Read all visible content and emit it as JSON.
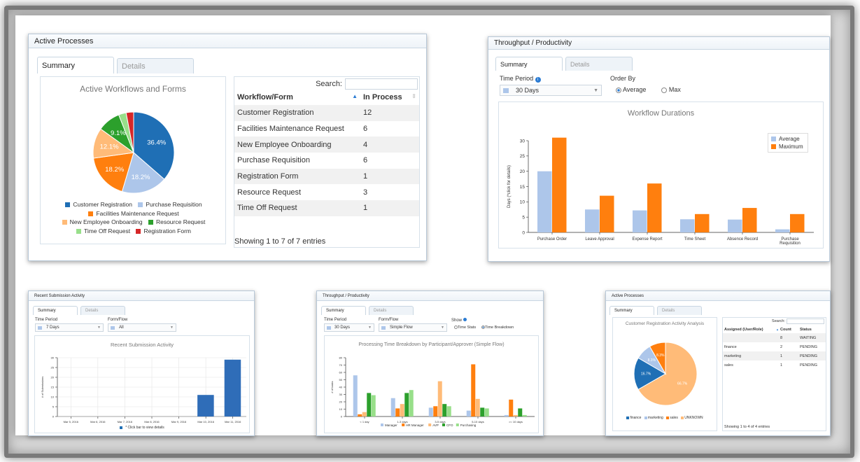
{
  "panel1": {
    "title": "Active Processes",
    "tabs": [
      "Summary",
      "Details"
    ],
    "chart_title": "Active Workflows and Forms",
    "slice_labels": [
      "36.4%",
      "18.2%",
      "18.2%",
      "12.1%",
      "9.1%"
    ],
    "legend": [
      {
        "label": "Customer Registration",
        "color": "#1f6fb5"
      },
      {
        "label": "Purchase Requisition",
        "color": "#adc6ea"
      },
      {
        "label": "Facilities Maintenance Request",
        "color": "#ff7f0e"
      },
      {
        "label": "New Employee Onboarding",
        "color": "#ffbb78"
      },
      {
        "label": "Resource Request",
        "color": "#2ca02c"
      },
      {
        "label": "Time Off Request",
        "color": "#98df8a"
      },
      {
        "label": "Registration Form",
        "color": "#d62728"
      }
    ],
    "search_label": "Search:",
    "table_headers": [
      "Workflow/Form",
      "In Process"
    ],
    "rows": [
      [
        "Customer Registration",
        "12"
      ],
      [
        "Facilities Maintenance Request",
        "6"
      ],
      [
        "New Employee Onboarding",
        "4"
      ],
      [
        "Purchase Requisition",
        "6"
      ],
      [
        "Registration Form",
        "1"
      ],
      [
        "Resource Request",
        "3"
      ],
      [
        "Time Off Request",
        "1"
      ]
    ],
    "footer": "Showing 1 to 7 of 7 entries"
  },
  "panel2": {
    "title": "Throughput / Productivity",
    "tabs": [
      "Summary",
      "Details"
    ],
    "time_period_label": "Time Period",
    "time_period_value": "30 Days",
    "order_by_label": "Order By",
    "order_options": [
      "Average",
      "Max"
    ],
    "chart_title": "Workflow Durations",
    "ylabel": "Days (*click for details)",
    "legend": [
      "Average",
      "Maximum"
    ]
  },
  "panel3": {
    "title": "Recent Submission Activity",
    "tabs": [
      "Summary",
      "Details"
    ],
    "time_period_label": "Time Period",
    "time_period_value": "7 Days",
    "form_flow_label": "Form/Flow",
    "form_flow_value": "All",
    "chart_title": "Recent Submission Activity",
    "ylabel": "# of Submissions",
    "legend": "* Click bar to view details"
  },
  "panel4": {
    "title": "Throughput / Productivity",
    "tabs": [
      "Summary",
      "Details"
    ],
    "time_period_label": "Time Period",
    "time_period_value": "30 Days",
    "form_flow_label": "Form/Flow",
    "form_flow_value": "Simple Flow",
    "show_label": "Show",
    "show_options": [
      "Time Stats",
      "Time Breakdown"
    ],
    "chart_title": "Processing Time Breakdown by Participant/Approver (Simple Flow)",
    "ylabel": "# of tasks"
  },
  "panel5": {
    "title": "Active Processes",
    "tabs": [
      "Summary",
      "Details"
    ],
    "chart_title": "Customer Registration Activity Analysis",
    "slice_labels": [
      "66.7%",
      "16.7%",
      "8.3%",
      "8.3%"
    ],
    "legend": [
      {
        "label": "finance",
        "color": "#1f6fb5"
      },
      {
        "label": "marketing",
        "color": "#adc6ea"
      },
      {
        "label": "sales",
        "color": "#ff7f0e"
      },
      {
        "label": "UNKNOWN",
        "color": "#ffbb78"
      }
    ],
    "search_label": "Search:",
    "table_headers": [
      "Assigned (User/Role)",
      "Count",
      "Status"
    ],
    "rows": [
      [
        "",
        "8",
        "WAITING"
      ],
      [
        "finance",
        "2",
        "PENDING"
      ],
      [
        "marketing",
        "1",
        "PENDING"
      ],
      [
        "sales",
        "1",
        "PENDING"
      ]
    ],
    "footer": "Showing 1 to 4 of 4 entries"
  },
  "chart_data": [
    {
      "type": "pie",
      "title": "Active Workflows and Forms",
      "categories": [
        "Customer Registration",
        "Purchase Requisition",
        "Facilities Maintenance Request",
        "New Employee Onboarding",
        "Resource Request",
        "Time Off Request",
        "Registration Form"
      ],
      "values": [
        36.4,
        18.2,
        18.2,
        12.1,
        9.1,
        3.0,
        3.0
      ]
    },
    {
      "type": "bar",
      "title": "Workflow Durations",
      "ylabel": "Days (*click for details)",
      "categories": [
        "Purchase Order",
        "Leave Approval",
        "Expense Report",
        "Time Sheet",
        "Absence Record",
        "Purchase Requisition"
      ],
      "series": [
        {
          "name": "Average",
          "values": [
            20,
            7.5,
            7.2,
            4.3,
            4.2,
            1.0
          ]
        },
        {
          "name": "Maximum",
          "values": [
            31,
            12,
            16,
            6,
            8,
            6
          ]
        }
      ],
      "ylim": [
        0,
        30
      ],
      "yticks": [
        0,
        5,
        10,
        15,
        20,
        25,
        30
      ],
      "legend_position": "top-right"
    },
    {
      "type": "bar",
      "title": "Recent Submission Activity",
      "ylabel": "# of Submissions",
      "categories": [
        "Mar 5, 2016",
        "Mar 6, 2016",
        "Mar 7, 2016",
        "Mar 8, 2016",
        "Mar 9, 2016",
        "Mar 10, 2016",
        "Mar 11, 2016"
      ],
      "values": [
        0,
        0,
        0,
        0,
        0,
        11,
        29
      ],
      "ylim": [
        0,
        30
      ],
      "yticks": [
        0,
        5,
        10,
        15,
        20,
        25,
        30
      ],
      "grid": true
    },
    {
      "type": "bar",
      "title": "Processing Time Breakdown by Participant/Approver (Simple Flow)",
      "ylabel": "# of tasks",
      "categories": [
        "< 1 day",
        "1-3 days",
        "3-5 days",
        "5-10 days",
        ">= 10 days"
      ],
      "series": [
        {
          "name": "Manager",
          "color": "#adc6ea",
          "values": [
            56,
            25,
            12,
            8,
            2
          ]
        },
        {
          "name": "HR Manager",
          "color": "#ff7f0e",
          "values": [
            3,
            11,
            14,
            71,
            23
          ]
        },
        {
          "name": "AVP",
          "color": "#ffbb78",
          "values": [
            6,
            17,
            48,
            24,
            2
          ]
        },
        {
          "name": "CFO",
          "color": "#2ca02c",
          "values": [
            32,
            32,
            17,
            12,
            11
          ]
        },
        {
          "name": "Purchasing",
          "color": "#98df8a",
          "values": [
            29,
            36,
            14,
            11,
            2
          ]
        }
      ],
      "ylim": [
        0,
        80
      ],
      "yticks": [
        0,
        10,
        20,
        30,
        40,
        50,
        60,
        70,
        80
      ]
    },
    {
      "type": "pie",
      "title": "Customer Registration Activity Analysis",
      "categories": [
        "UNKNOWN",
        "finance",
        "marketing",
        "sales"
      ],
      "values": [
        66.7,
        16.7,
        8.3,
        8.3
      ]
    }
  ]
}
